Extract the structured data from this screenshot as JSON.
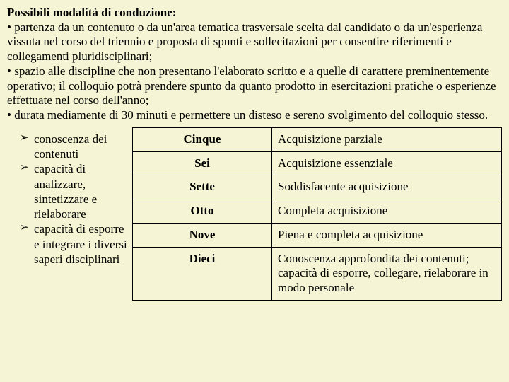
{
  "background_color": "#f5f5d5",
  "font_family": "Times New Roman",
  "intro": {
    "title": "Possibili modalità di conduzione:",
    "bullets": [
      "partenza da un contenuto o da un'area tematica trasversale scelta dal candidato o da un'esperienza vissuta nel corso del triennio e proposta di spunti e sollecitazioni per consentire riferimenti e collegamenti pluridisciplinari;",
      "spazio alle discipline che non presentano l'elaborato scritto e a quelle di carattere preminentemente operativo; il colloquio potrà prendere spunto da quanto prodotto in esercitazioni pratiche o esperienze effettuate nel corso dell'anno;",
      "durata mediamente di 30 minuti e permettere un disteso e sereno svolgimento del colloquio stesso."
    ]
  },
  "criteria": {
    "items": [
      "conoscenza dei contenuti",
      "capacità di analizzare, sintetizzare e rielaborare",
      "capacità di esporre e integrare i diversi saperi disciplinari"
    ]
  },
  "table": {
    "rows": [
      {
        "grade": "Cinque",
        "desc": "Acquisizione parziale"
      },
      {
        "grade": "Sei",
        "desc": "Acquisizione essenziale"
      },
      {
        "grade": "Sette",
        "desc": "Soddisfacente acquisizione"
      },
      {
        "grade": "Otto",
        "desc": "Completa acquisizione"
      },
      {
        "grade": "Nove",
        "desc": "Piena e completa acquisizione"
      },
      {
        "grade": "Dieci",
        "desc": "Conoscenza approfondita dei contenuti; capacità di esporre, collegare, rielaborare in modo personale"
      }
    ]
  }
}
